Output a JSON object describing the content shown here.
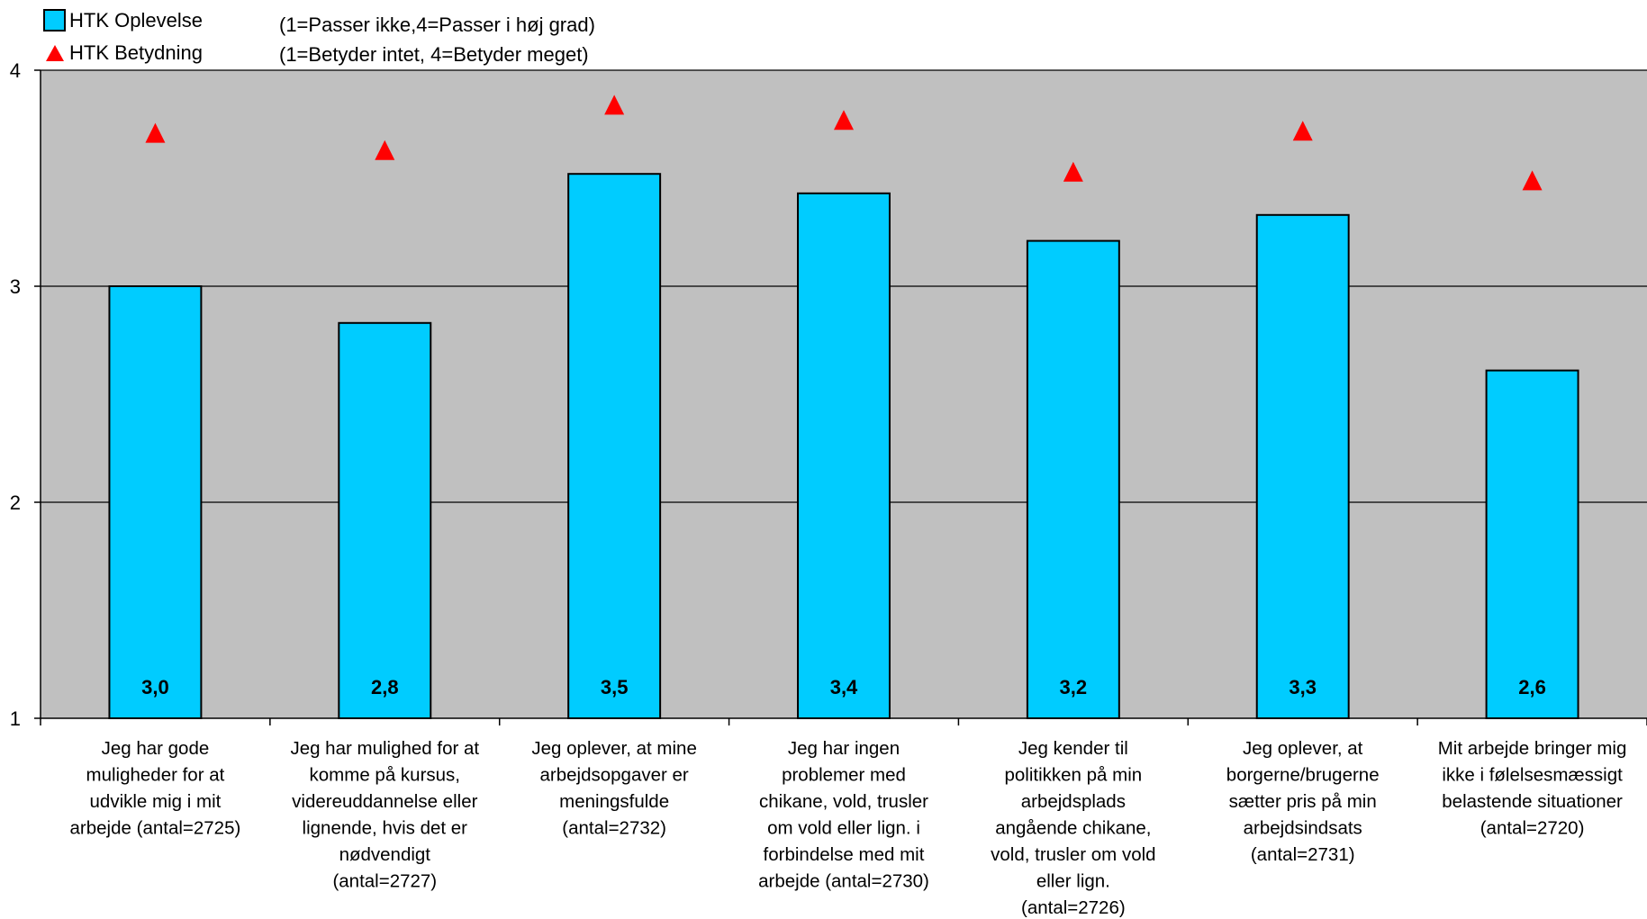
{
  "chart_data": {
    "type": "bar",
    "categories": [
      [
        "Jeg har gode",
        "muligheder for at",
        "udvikle mig i mit",
        "arbejde (antal=2725)"
      ],
      [
        "Jeg har mulighed for at",
        "komme på kursus,",
        "videreuddannelse eller",
        "lignende, hvis det er",
        "nødvendigt",
        "(antal=2727)"
      ],
      [
        "Jeg oplever, at mine",
        "arbejdsopgaver er",
        "meningsfulde",
        "(antal=2732)"
      ],
      [
        "Jeg har ingen",
        "problemer med",
        "chikane, vold, trusler",
        "om vold eller lign. i",
        "forbindelse med mit",
        "arbejde (antal=2730)"
      ],
      [
        "Jeg kender til",
        "politikken på min",
        "arbejdsplads",
        "angående chikane,",
        "vold, trusler om vold",
        "eller lign.",
        "(antal=2726)"
      ],
      [
        "Jeg oplever, at",
        "borgerne/brugerne",
        "sætter pris på min",
        "arbejdsindsats",
        "(antal=2731)"
      ],
      [
        "Mit arbejde bringer mig",
        "ikke i følelsesmæssigt",
        "belastende situationer",
        "(antal=2720)"
      ]
    ],
    "series": [
      {
        "name": "HTK Oplevelse",
        "kind": "bar",
        "color": "#00CCFF",
        "values": [
          3.0,
          2.83,
          3.52,
          3.43,
          3.21,
          3.33,
          2.61
        ],
        "labels": [
          "3,0",
          "2,8",
          "3,5",
          "3,4",
          "3,2",
          "3,3",
          "2,6"
        ]
      },
      {
        "name": "HTK Betydning",
        "kind": "marker",
        "marker": "triangle",
        "color": "#FF0000",
        "values": [
          3.71,
          3.63,
          3.84,
          3.77,
          3.53,
          3.72,
          3.49
        ]
      }
    ],
    "notes": [
      "(1=Passer ikke,4=Passer i høj grad)",
      "(1=Betyder intet, 4=Betyder meget)"
    ],
    "ylim": [
      1,
      4
    ],
    "yticks": [
      1,
      2,
      3,
      4
    ],
    "grid": true,
    "legend_position": "top-left",
    "plot_background": "#C0C0C0"
  }
}
